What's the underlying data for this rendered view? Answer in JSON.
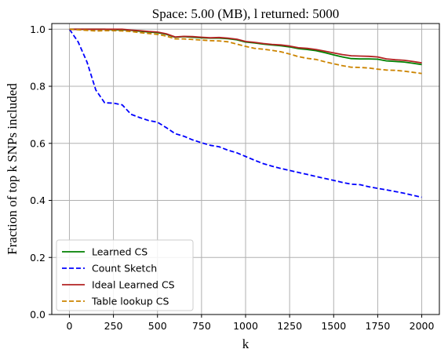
{
  "chart_data": {
    "type": "line",
    "title": "Space: 5.00 (MB), l returned: 5000",
    "xlabel": "k",
    "ylabel": "Fraction of top k SNPs included",
    "xlim": [
      -100,
      2100
    ],
    "ylim": [
      0.0,
      1.02
    ],
    "xticks": [
      0,
      250,
      500,
      750,
      1000,
      1250,
      1500,
      1750,
      2000
    ],
    "yticks": [
      0.0,
      0.2,
      0.4,
      0.6,
      0.8,
      1.0
    ],
    "xtick_labels": [
      "0",
      "250",
      "500",
      "750",
      "1000",
      "1250",
      "1500",
      "1750",
      "2000"
    ],
    "ytick_labels": [
      "0.0",
      "0.2",
      "0.4",
      "0.6",
      "0.8",
      "1.0"
    ],
    "grid": true,
    "legend_position": "lower-left",
    "series": [
      {
        "name": "Learned CS",
        "color": "#008000",
        "dash": "solid",
        "x": [
          0,
          50,
          100,
          150,
          200,
          250,
          300,
          350,
          400,
          450,
          500,
          550,
          600,
          650,
          700,
          750,
          800,
          850,
          900,
          950,
          1000,
          1050,
          1100,
          1150,
          1200,
          1250,
          1300,
          1350,
          1400,
          1450,
          1500,
          1550,
          1600,
          1650,
          1700,
          1750,
          1800,
          1850,
          1900,
          1950,
          2000
        ],
        "y": [
          1.0,
          1.0,
          1.0,
          1.0,
          1.0,
          0.998,
          0.998,
          0.996,
          0.993,
          0.99,
          0.988,
          0.982,
          0.972,
          0.974,
          0.972,
          0.97,
          0.969,
          0.969,
          0.967,
          0.963,
          0.955,
          0.952,
          0.948,
          0.945,
          0.942,
          0.938,
          0.932,
          0.929,
          0.925,
          0.918,
          0.91,
          0.903,
          0.897,
          0.896,
          0.896,
          0.895,
          0.889,
          0.887,
          0.885,
          0.881,
          0.876
        ]
      },
      {
        "name": "Count Sketch",
        "color": "#0000ff",
        "dash": "dashed",
        "x": [
          0,
          50,
          100,
          150,
          200,
          250,
          300,
          350,
          400,
          450,
          500,
          550,
          600,
          650,
          700,
          750,
          800,
          850,
          900,
          950,
          1000,
          1050,
          1100,
          1150,
          1200,
          1250,
          1300,
          1350,
          1400,
          1450,
          1500,
          1550,
          1600,
          1650,
          1700,
          1750,
          1800,
          1850,
          1900,
          1950,
          2000
        ],
        "y": [
          1.0,
          0.955,
          0.885,
          0.787,
          0.742,
          0.741,
          0.735,
          0.702,
          0.69,
          0.68,
          0.674,
          0.655,
          0.634,
          0.625,
          0.612,
          0.602,
          0.593,
          0.588,
          0.576,
          0.567,
          0.554,
          0.541,
          0.529,
          0.52,
          0.512,
          0.505,
          0.498,
          0.491,
          0.484,
          0.477,
          0.47,
          0.463,
          0.457,
          0.455,
          0.448,
          0.442,
          0.437,
          0.431,
          0.425,
          0.418,
          0.411
        ]
      },
      {
        "name": "Ideal Learned CS",
        "color": "#b22222",
        "dash": "solid",
        "x": [
          0,
          50,
          100,
          150,
          200,
          250,
          300,
          350,
          400,
          450,
          500,
          550,
          600,
          650,
          700,
          750,
          800,
          850,
          900,
          950,
          1000,
          1050,
          1100,
          1150,
          1200,
          1250,
          1300,
          1350,
          1400,
          1450,
          1500,
          1550,
          1600,
          1650,
          1700,
          1750,
          1800,
          1850,
          1900,
          1950,
          2000
        ],
        "y": [
          1.0,
          1.0,
          1.0,
          1.0,
          1.0,
          1.0,
          1.0,
          0.997,
          0.995,
          0.992,
          0.99,
          0.984,
          0.973,
          0.975,
          0.974,
          0.972,
          0.97,
          0.971,
          0.969,
          0.965,
          0.957,
          0.954,
          0.95,
          0.947,
          0.945,
          0.941,
          0.935,
          0.933,
          0.929,
          0.923,
          0.917,
          0.911,
          0.907,
          0.906,
          0.905,
          0.903,
          0.896,
          0.893,
          0.891,
          0.887,
          0.882
        ]
      },
      {
        "name": "Table lookup CS",
        "color": "#cc8400",
        "dash": "dashed",
        "x": [
          0,
          50,
          100,
          150,
          200,
          250,
          300,
          350,
          400,
          450,
          500,
          550,
          600,
          650,
          700,
          750,
          800,
          850,
          900,
          950,
          1000,
          1050,
          1100,
          1150,
          1200,
          1250,
          1300,
          1350,
          1400,
          1450,
          1500,
          1550,
          1600,
          1650,
          1700,
          1750,
          1800,
          1850,
          1900,
          1950,
          2000
        ],
        "y": [
          1.0,
          0.998,
          0.996,
          0.994,
          0.995,
          0.995,
          0.994,
          0.992,
          0.988,
          0.985,
          0.982,
          0.976,
          0.966,
          0.966,
          0.964,
          0.962,
          0.96,
          0.959,
          0.956,
          0.948,
          0.94,
          0.933,
          0.93,
          0.926,
          0.921,
          0.913,
          0.904,
          0.898,
          0.894,
          0.886,
          0.879,
          0.872,
          0.867,
          0.866,
          0.864,
          0.86,
          0.857,
          0.856,
          0.853,
          0.849,
          0.845
        ]
      }
    ]
  }
}
